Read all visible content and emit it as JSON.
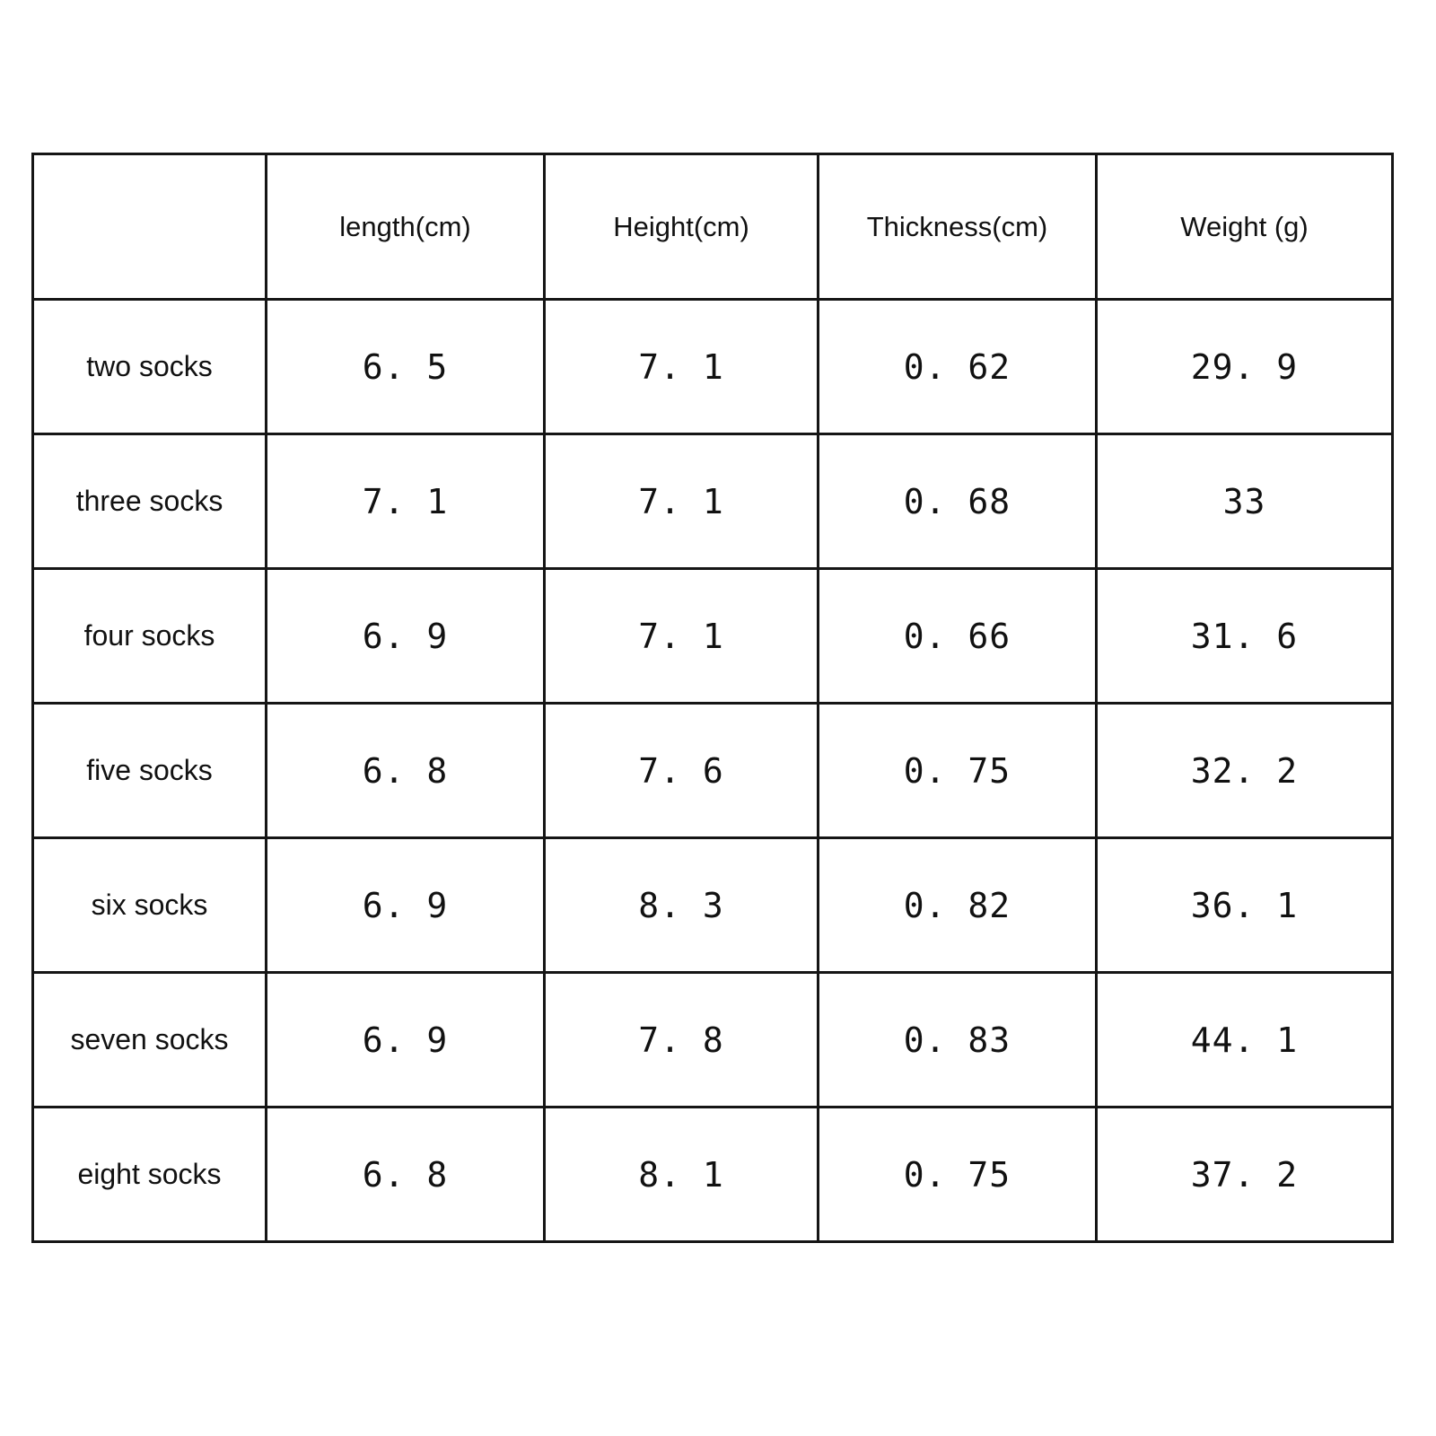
{
  "table": {
    "columns": [
      "",
      "length(cm)",
      "Height(cm)",
      "Thickness(cm)",
      "Weight (g)"
    ],
    "rows": [
      {
        "label": "two socks",
        "values": [
          "6. 5",
          "7. 1",
          "0. 62",
          "29. 9"
        ]
      },
      {
        "label": "three socks",
        "values": [
          "7. 1",
          "7. 1",
          "0. 68",
          "33"
        ]
      },
      {
        "label": "four socks",
        "values": [
          "6. 9",
          "7. 1",
          "0. 66",
          "31. 6"
        ]
      },
      {
        "label": "five socks",
        "values": [
          "6. 8",
          "7. 6",
          "0. 75",
          "32. 2"
        ]
      },
      {
        "label": "six socks",
        "values": [
          "6. 9",
          "8. 3",
          "0. 82",
          "36. 1"
        ]
      },
      {
        "label": "seven socks",
        "values": [
          "6. 9",
          "7. 8",
          "0. 83",
          "44. 1"
        ]
      },
      {
        "label": "eight socks",
        "values": [
          "6. 8",
          "8. 1",
          "0. 75",
          "37. 2"
        ]
      }
    ]
  },
  "colors": {
    "background": "#ffffff",
    "border": "#151515",
    "text": "#111111"
  },
  "chart_data": {
    "type": "table",
    "title": "",
    "columns": [
      "",
      "length(cm)",
      "Height(cm)",
      "Thickness(cm)",
      "Weight (g)"
    ],
    "rows": [
      [
        "two socks",
        6.5,
        7.1,
        0.62,
        29.9
      ],
      [
        "three socks",
        7.1,
        7.1,
        0.68,
        33
      ],
      [
        "four socks",
        6.9,
        7.1,
        0.66,
        31.6
      ],
      [
        "five socks",
        6.8,
        7.6,
        0.75,
        32.2
      ],
      [
        "six socks",
        6.9,
        8.3,
        0.82,
        36.1
      ],
      [
        "seven socks",
        6.9,
        7.8,
        0.83,
        44.1
      ],
      [
        "eight socks",
        6.8,
        8.1,
        0.75,
        37.2
      ]
    ]
  }
}
